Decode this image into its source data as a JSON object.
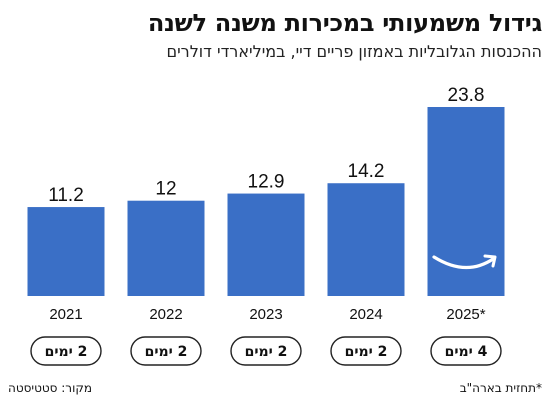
{
  "title": "גידול משמעותי במכירות משנה לשנה",
  "subtitle": "ההכנסות הגלובליות באמזון פריים דיי, במיליארדי דולרים",
  "colors": {
    "bar": "#3a6fc6",
    "text": "#111111",
    "pill_border": "#222222"
  },
  "chart_data": {
    "type": "bar",
    "categories": [
      "2021",
      "2022",
      "2023",
      "2024",
      "2025*"
    ],
    "values": [
      11.2,
      12,
      12.9,
      14.2,
      23.8
    ],
    "value_labels": [
      "11.2",
      "12",
      "12.9",
      "14.2",
      "23.8"
    ],
    "duration_labels": [
      "2 ימים",
      "2 ימים",
      "2 ימים",
      "2 ימים",
      "4 ימים"
    ],
    "ylim": [
      0,
      23.8
    ],
    "grid": false,
    "logo_on_bar": "amazon-smile-logo"
  },
  "footer": {
    "source": "מקור: סטטיסטה",
    "forecast_note": "*תחזית בארה\"ב"
  }
}
